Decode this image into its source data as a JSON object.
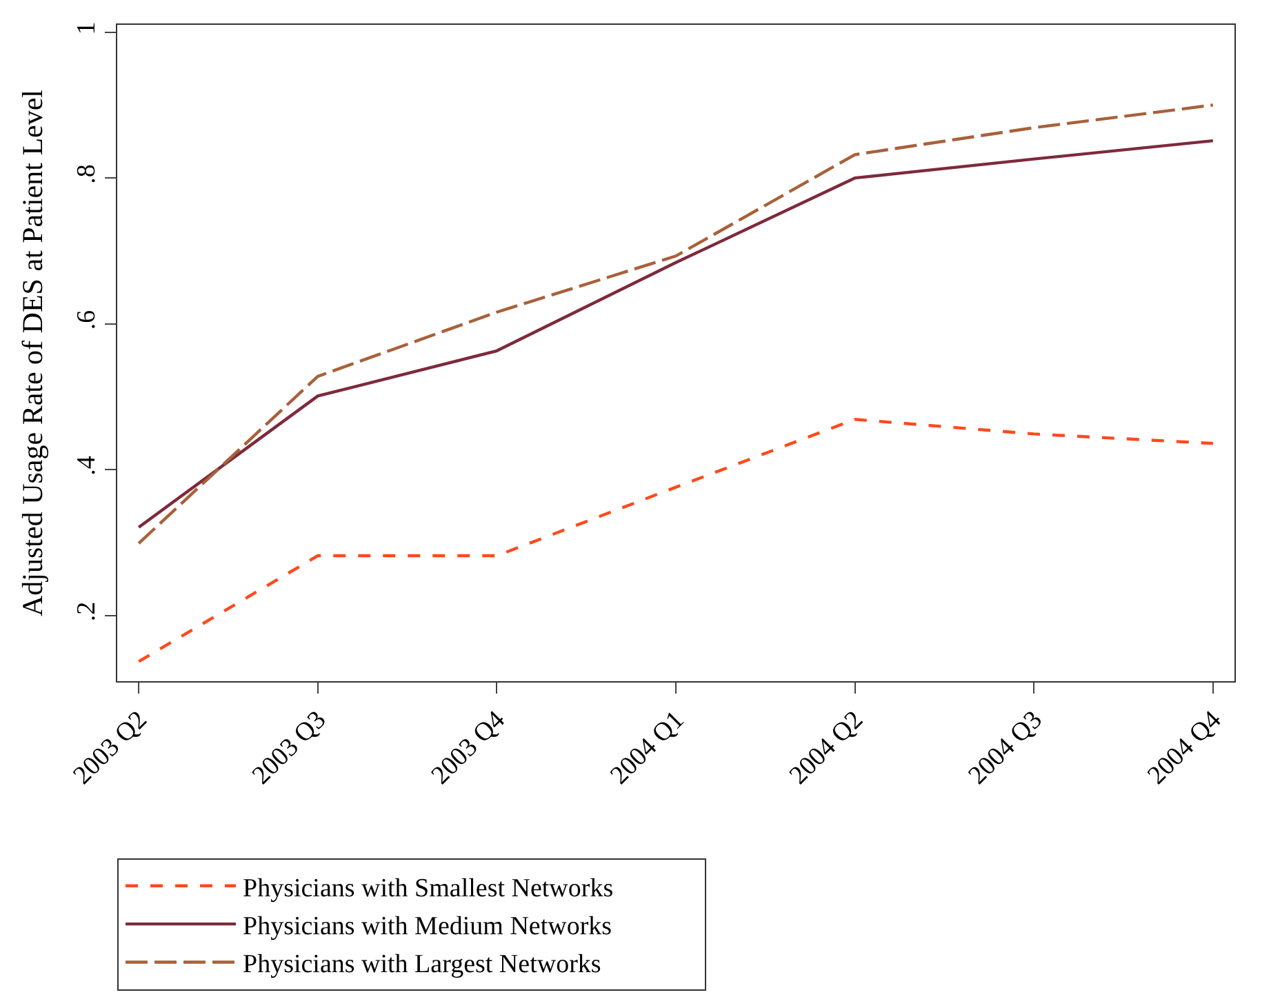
{
  "chart_data": {
    "type": "line",
    "ylabel": "Adjusted Usage Rate of DES at Patient Level",
    "categories": [
      "2003 Q2",
      "2003 Q3",
      "2003 Q4",
      "2004 Q1",
      "2004 Q2",
      "2004 Q3",
      "2004 Q4"
    ],
    "series": [
      {
        "name": "Physicians with Smallest Networks",
        "color": "#ff4a1c",
        "line_style": "dashed",
        "values": [
          0.137,
          0.282,
          0.282,
          0.376,
          0.469,
          0.449,
          0.436
        ]
      },
      {
        "name": "Physicians with Medium Networks",
        "color": "#7e2a3c",
        "line_style": "solid",
        "values": [
          0.321,
          0.501,
          0.563,
          0.684,
          0.8,
          0.826,
          0.851
        ]
      },
      {
        "name": "Physicians with Largest Networks",
        "color": "#a8613a",
        "line_style": "longdash",
        "values": [
          0.299,
          0.528,
          0.616,
          0.693,
          0.832,
          0.869,
          0.9
        ]
      }
    ],
    "ylim": [
      0.11,
      1.01
    ],
    "yticks": [
      {
        "value": 0.2,
        "label": ".2"
      },
      {
        "value": 0.4,
        "label": ".4"
      },
      {
        "value": 0.6,
        "label": ".6"
      },
      {
        "value": 0.8,
        "label": ".8"
      },
      1
    ],
    "legend": "bottom",
    "marker": "none"
  }
}
